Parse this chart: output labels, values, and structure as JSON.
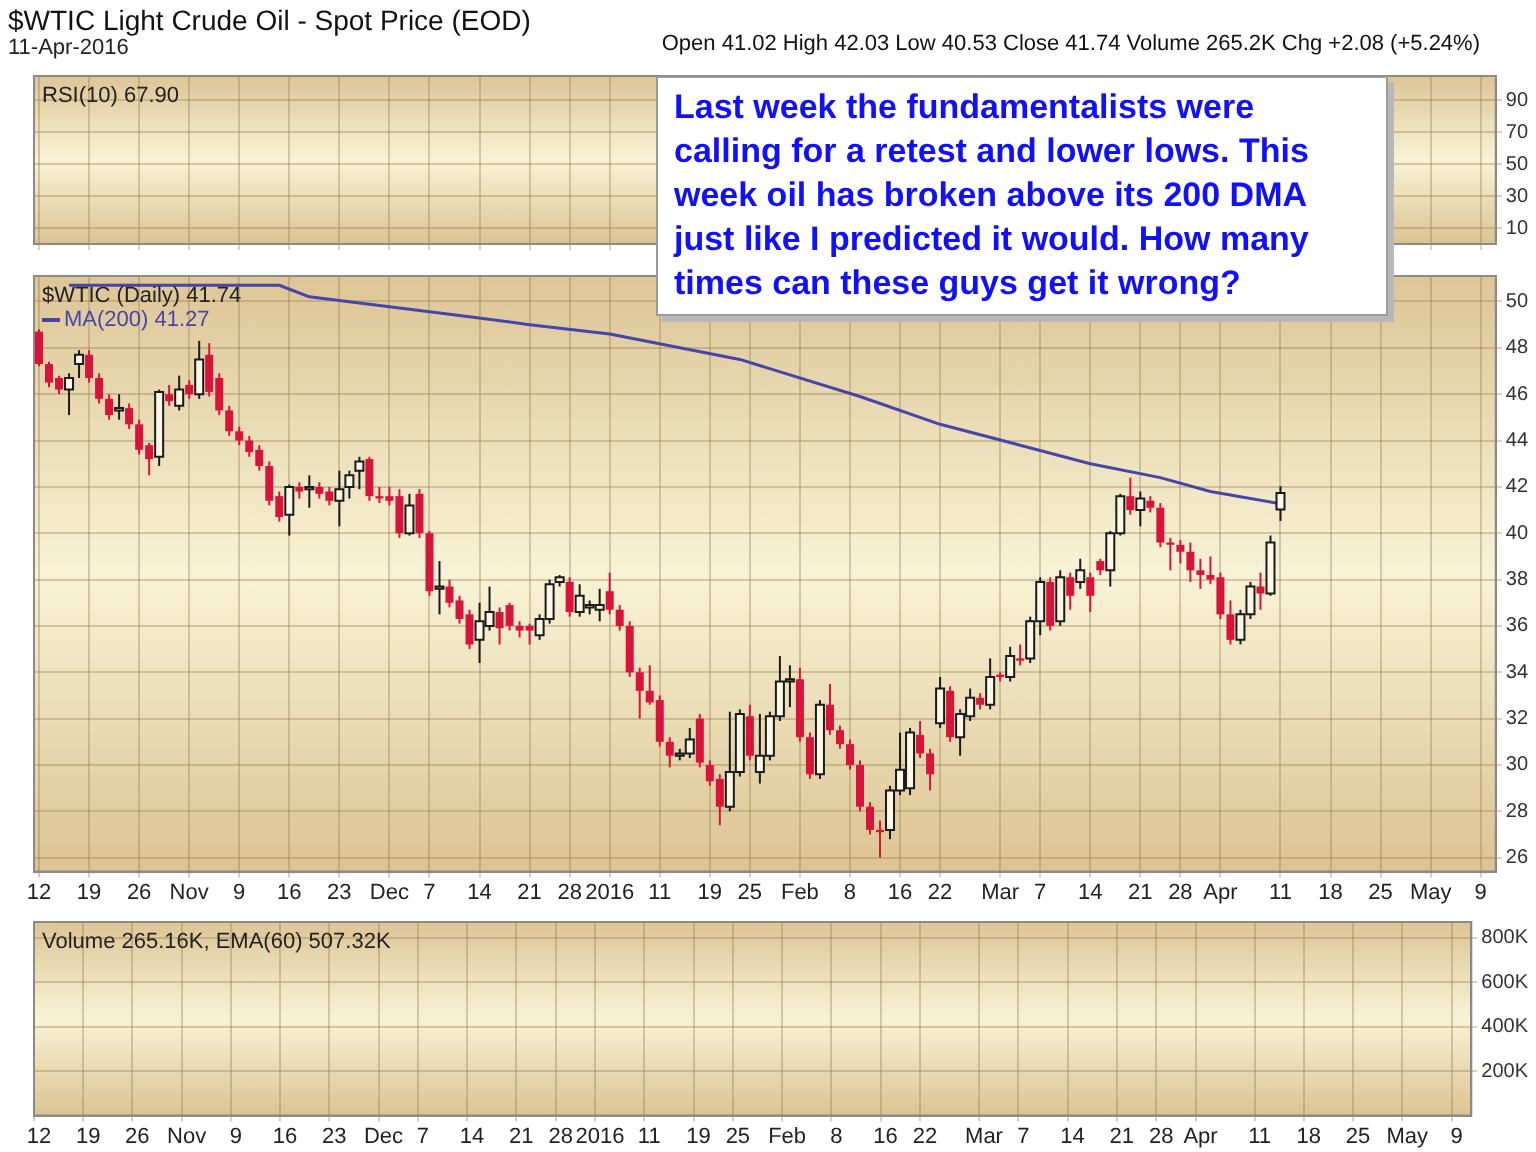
{
  "chart_data": [
    {
      "type": "line",
      "title": "$WTIC Light Crude Oil - Spot Price (EOD)",
      "subtitle": "11-Apr-2016",
      "annotations": [
        "Open 41.02 High 42.03 Low 40.53 Close 41.74 Volume 265.2K Chg +2.08 (+5.24%)",
        "Last week the fundamentalists were calling for a retest and lower lows. This week oil has broken above its 200 DMA just like I predicted it would. How many times can these guys get it wrong?"
      ],
      "legend_title": "RSI(10) 67.90",
      "categories": [
        null,
        null,
        null,
        null,
        null,
        null,
        null,
        null,
        null,
        null,
        null,
        null,
        null,
        null,
        null,
        null,
        null,
        null,
        null,
        null,
        null,
        null,
        null,
        null,
        null,
        null,
        null,
        null,
        null,
        null,
        null,
        null,
        null,
        null,
        null,
        null,
        null,
        null,
        null,
        null,
        null,
        null,
        null,
        null,
        null,
        null,
        null,
        null,
        null,
        null,
        null,
        null,
        null,
        null,
        null,
        null,
        null,
        null,
        null,
        null,
        null,
        null,
        null,
        null,
        null,
        null,
        null,
        null,
        null,
        null,
        null,
        null,
        null,
        null,
        null,
        null,
        null,
        null,
        null,
        null,
        null,
        null,
        null,
        null,
        null,
        null,
        null,
        null,
        null,
        null,
        null,
        null,
        null,
        null,
        null,
        null,
        null,
        null,
        null,
        null,
        null,
        null,
        null,
        null,
        null,
        null,
        null,
        null,
        null,
        null,
        null,
        null,
        null,
        null,
        null,
        null,
        null,
        null,
        null,
        null,
        null,
        null,
        null,
        null,
        null,
        null,
        null,
        null,
        null,
        null,
        null,
        null,
        null,
        null,
        null,
        null,
        null,
        null,
        null,
        null,
        null,
        null,
        null,
        null,
        null,
        null
      ],
      "ylim": [
        0,
        105
      ],
      "yticks": [
        10,
        30,
        50,
        70,
        90
      ],
      "grid": true,
      "tick_labels": "y"
    },
    {
      "type": "candlestick",
      "legend_title": "$WTIC (Daily) 41.74",
      "legend": "top left",
      "grid": true,
      "categories": [
        "12",
        null,
        null,
        null,
        null,
        "19",
        null,
        null,
        null,
        null,
        "26",
        null,
        null,
        null,
        null,
        "Nov",
        null,
        null,
        null,
        null,
        "9",
        null,
        null,
        null,
        null,
        "16",
        null,
        null,
        null,
        null,
        "23",
        null,
        null,
        null,
        null,
        "Dec",
        null,
        null,
        null,
        "7",
        null,
        null,
        null,
        null,
        "14",
        null,
        null,
        null,
        null,
        "21",
        null,
        null,
        null,
        "28",
        null,
        null,
        null,
        "2016",
        null,
        null,
        null,
        null,
        "11",
        null,
        null,
        null,
        null,
        "19",
        null,
        null,
        null,
        "25",
        null,
        null,
        null,
        null,
        "Feb",
        null,
        null,
        null,
        null,
        "8",
        null,
        null,
        null,
        null,
        "16",
        null,
        null,
        null,
        "22",
        null,
        null,
        null,
        null,
        null,
        "Mar",
        null,
        null,
        null,
        "7",
        null,
        null,
        null,
        null,
        "14",
        null,
        null,
        null,
        null,
        "21",
        null,
        null,
        null,
        "28",
        null,
        null,
        null,
        "Apr",
        null,
        null,
        null,
        null,
        null,
        "11",
        null,
        null,
        null,
        null,
        "18",
        null,
        null,
        null,
        null,
        "25",
        null,
        null,
        null,
        null,
        "May",
        null,
        null,
        null,
        null,
        "9",
        null
      ],
      "ohlc": [
        [
          48.7,
          48.8,
          47.2,
          47.3
        ],
        [
          47.3,
          47.4,
          46.3,
          46.5
        ],
        [
          46.7,
          46.8,
          46.0,
          46.2
        ],
        [
          46.2,
          46.9,
          45.1,
          46.7
        ],
        [
          47.3,
          47.9,
          46.7,
          47.7
        ],
        [
          47.7,
          47.9,
          46.5,
          46.7
        ],
        [
          46.7,
          46.9,
          45.6,
          45.8
        ],
        [
          45.8,
          46.0,
          44.9,
          45.1
        ],
        [
          45.3,
          46.0,
          44.9,
          45.4
        ],
        [
          45.4,
          45.6,
          44.5,
          44.7
        ],
        [
          44.7,
          44.9,
          43.4,
          43.6
        ],
        [
          43.8,
          43.9,
          42.5,
          43.2
        ],
        [
          43.3,
          46.2,
          42.9,
          46.1
        ],
        [
          46.0,
          46.4,
          45.5,
          45.7
        ],
        [
          45.5,
          46.8,
          45.3,
          46.2
        ],
        [
          46.4,
          46.6,
          45.8,
          46.0
        ],
        [
          46.0,
          48.3,
          45.8,
          47.5
        ],
        [
          47.7,
          48.2,
          45.9,
          46.1
        ],
        [
          46.7,
          46.9,
          45.1,
          45.3
        ],
        [
          45.3,
          45.5,
          44.2,
          44.4
        ],
        [
          44.4,
          44.6,
          43.8,
          44.0
        ],
        [
          44.0,
          44.2,
          43.3,
          43.5
        ],
        [
          43.6,
          43.8,
          42.7,
          42.9
        ],
        [
          42.9,
          43.1,
          41.2,
          41.4
        ],
        [
          41.6,
          41.8,
          40.5,
          40.7
        ],
        [
          40.8,
          42.1,
          39.9,
          42.0
        ],
        [
          42.0,
          42.2,
          41.5,
          41.8
        ],
        [
          41.9,
          42.5,
          41.1,
          42.0
        ],
        [
          42.0,
          42.2,
          41.5,
          41.7
        ],
        [
          41.8,
          42.0,
          41.2,
          41.4
        ],
        [
          41.4,
          42.7,
          40.3,
          41.9
        ],
        [
          42.0,
          42.7,
          41.5,
          42.5
        ],
        [
          42.7,
          43.3,
          41.9,
          43.1
        ],
        [
          43.2,
          43.3,
          41.4,
          41.6
        ],
        [
          41.6,
          42.0,
          41.3,
          41.5
        ],
        [
          41.6,
          42.0,
          41.2,
          41.4
        ],
        [
          41.6,
          41.9,
          39.8,
          40.0
        ],
        [
          40.0,
          41.7,
          39.9,
          41.2
        ],
        [
          41.7,
          41.9,
          39.8,
          40.0
        ],
        [
          40.0,
          40.1,
          37.3,
          37.5
        ],
        [
          37.6,
          38.8,
          36.5,
          37.7
        ],
        [
          37.7,
          38.0,
          36.8,
          37.0
        ],
        [
          37.1,
          37.3,
          36.1,
          36.3
        ],
        [
          36.5,
          36.7,
          35.0,
          35.2
        ],
        [
          35.4,
          37.0,
          34.4,
          36.2
        ],
        [
          36.0,
          37.7,
          35.8,
          36.6
        ],
        [
          36.6,
          36.8,
          35.2,
          35.9
        ],
        [
          36.9,
          37.0,
          35.8,
          36.0
        ],
        [
          36.0,
          36.2,
          35.5,
          35.8
        ],
        [
          36.0,
          36.1,
          35.2,
          35.8
        ],
        [
          35.6,
          36.5,
          35.4,
          36.3
        ],
        [
          36.3,
          38.0,
          36.1,
          37.8
        ],
        [
          37.9,
          38.2,
          37.7,
          38.1
        ],
        [
          37.9,
          38.1,
          36.4,
          36.6
        ],
        [
          36.6,
          37.8,
          36.4,
          37.3
        ],
        [
          36.8,
          37.1,
          36.5,
          36.9
        ],
        [
          36.7,
          37.6,
          36.2,
          36.9
        ],
        [
          37.5,
          38.3,
          36.5,
          36.7
        ],
        [
          36.7,
          36.9,
          35.8,
          36.0
        ],
        [
          36.0,
          36.2,
          33.8,
          34.0
        ],
        [
          34.0,
          34.2,
          32.0,
          33.2
        ],
        [
          33.2,
          34.3,
          32.6,
          32.7
        ],
        [
          32.8,
          33.0,
          30.8,
          31.0
        ],
        [
          31.0,
          31.2,
          29.9,
          30.4
        ],
        [
          30.4,
          30.7,
          30.2,
          30.5
        ],
        [
          30.5,
          31.6,
          30.3,
          31.1
        ],
        [
          32.0,
          32.2,
          29.9,
          30.1
        ],
        [
          30.0,
          30.2,
          29.1,
          29.3
        ],
        [
          29.4,
          29.6,
          27.4,
          28.2
        ],
        [
          28.2,
          32.3,
          28.0,
          29.7
        ],
        [
          29.7,
          32.4,
          29.5,
          32.2
        ],
        [
          32.1,
          32.6,
          30.2,
          30.4
        ],
        [
          29.7,
          32.2,
          29.2,
          30.4
        ],
        [
          30.4,
          32.3,
          30.2,
          32.1
        ],
        [
          32.1,
          34.7,
          31.9,
          33.6
        ],
        [
          33.6,
          34.3,
          32.5,
          33.7
        ],
        [
          33.7,
          34.2,
          31.0,
          31.2
        ],
        [
          31.2,
          31.4,
          29.4,
          29.6
        ],
        [
          29.6,
          32.8,
          29.4,
          32.6
        ],
        [
          32.6,
          33.5,
          31.3,
          31.5
        ],
        [
          31.5,
          31.7,
          30.7,
          30.9
        ],
        [
          30.9,
          31.1,
          29.8,
          30.0
        ],
        [
          30.0,
          30.2,
          28.0,
          28.2
        ],
        [
          28.2,
          28.4,
          27.0,
          27.2
        ],
        [
          27.2,
          27.6,
          26.0,
          27.1
        ],
        [
          27.2,
          29.1,
          26.8,
          28.9
        ],
        [
          28.9,
          31.4,
          28.7,
          29.8
        ],
        [
          29.0,
          31.6,
          28.7,
          31.4
        ],
        [
          31.3,
          31.9,
          30.3,
          30.5
        ],
        [
          30.5,
          30.7,
          28.9,
          29.6
        ],
        [
          31.8,
          33.8,
          31.6,
          33.3
        ],
        [
          33.2,
          33.4,
          31.0,
          31.2
        ],
        [
          31.2,
          32.4,
          30.4,
          32.2
        ],
        [
          32.1,
          33.3,
          31.9,
          32.9
        ],
        [
          32.9,
          33.1,
          32.4,
          32.6
        ],
        [
          32.6,
          34.6,
          32.4,
          33.8
        ],
        [
          33.9,
          34.0,
          33.6,
          33.8
        ],
        [
          33.8,
          35.1,
          33.6,
          34.7
        ],
        [
          34.6,
          35.2,
          34.3,
          34.5
        ],
        [
          34.6,
          36.4,
          34.4,
          36.2
        ],
        [
          36.2,
          38.1,
          35.6,
          37.9
        ],
        [
          37.9,
          38.1,
          35.8,
          36.0
        ],
        [
          36.2,
          38.4,
          36.0,
          38.1
        ],
        [
          38.1,
          38.3,
          36.7,
          37.3
        ],
        [
          37.9,
          38.9,
          37.6,
          38.4
        ],
        [
          38.1,
          38.3,
          36.6,
          37.3
        ],
        [
          38.8,
          38.9,
          38.2,
          38.4
        ],
        [
          38.4,
          40.1,
          37.7,
          40.0
        ],
        [
          40.0,
          41.7,
          39.9,
          41.6
        ],
        [
          41.6,
          42.4,
          40.8,
          41.0
        ],
        [
          41.0,
          41.8,
          40.3,
          41.5
        ],
        [
          41.4,
          41.6,
          40.9,
          41.1
        ],
        [
          41.1,
          41.3,
          39.4,
          39.6
        ],
        [
          39.6,
          39.8,
          38.4,
          39.5
        ],
        [
          39.5,
          39.7,
          38.7,
          39.2
        ],
        [
          39.2,
          39.6,
          37.9,
          38.4
        ],
        [
          38.4,
          38.9,
          37.6,
          38.2
        ],
        [
          38.2,
          39.0,
          37.8,
          38.0
        ],
        [
          38.1,
          38.3,
          36.3,
          36.5
        ],
        [
          36.5,
          37.1,
          35.2,
          35.4
        ],
        [
          35.4,
          36.7,
          35.2,
          36.5
        ],
        [
          36.5,
          37.9,
          36.3,
          37.7
        ],
        [
          37.7,
          38.3,
          36.7,
          37.4
        ],
        [
          37.4,
          39.9,
          37.3,
          39.6
        ],
        [
          41.02,
          42.03,
          40.53,
          41.74
        ],
        null,
        null,
        null,
        null,
        null,
        null,
        null,
        null,
        null,
        null,
        null,
        null,
        null,
        null,
        null,
        null,
        null,
        null,
        null,
        null,
        null
      ],
      "series": [
        {
          "name": "MA(200) 41.27",
          "type": "line",
          "color": "#4646a8",
          "values": [
            null,
            null,
            null,
            50.7,
            null,
            null,
            null,
            null,
            null,
            null,
            null,
            null,
            null,
            null,
            null,
            null,
            null,
            null,
            null,
            null,
            null,
            null,
            null,
            null,
            50.7,
            null,
            null,
            50.2,
            null,
            null,
            null,
            null,
            null,
            null,
            null,
            null,
            null,
            null,
            null,
            null,
            null,
            null,
            49.4,
            null,
            null,
            null,
            null,
            null,
            null,
            49.0,
            null,
            null,
            null,
            null,
            null,
            null,
            null,
            48.6,
            null,
            null,
            null,
            null,
            null,
            null,
            null,
            null,
            null,
            null,
            null,
            null,
            47.5,
            null,
            null,
            null,
            null,
            null,
            null,
            null,
            null,
            null,
            null,
            null,
            45.9,
            null,
            null,
            null,
            null,
            null,
            null,
            null,
            44.7,
            null,
            null,
            null,
            null,
            null,
            null,
            null,
            43.8,
            null,
            null,
            null,
            null,
            null,
            null,
            43.0,
            null,
            null,
            null,
            null,
            null,
            null,
            42.4,
            null,
            null,
            null,
            null,
            41.8,
            null,
            null,
            null,
            null,
            null,
            null,
            41.27,
            null,
            null,
            null,
            null,
            null,
            null,
            null,
            null,
            null,
            null,
            null,
            null,
            null,
            null,
            null,
            null,
            null,
            null,
            null,
            null,
            null
          ]
        }
      ],
      "ylim": [
        25.4,
        51.1
      ],
      "yticks": [
        26,
        28,
        30,
        32,
        34,
        36,
        38,
        40,
        42,
        44,
        46,
        48,
        50
      ]
    },
    {
      "type": "bar",
      "grid": true,
      "categories": [
        "12",
        null,
        null,
        null,
        null,
        "19",
        null,
        null,
        null,
        null,
        "26",
        null,
        null,
        null,
        null,
        "Nov",
        null,
        null,
        null,
        null,
        "9",
        null,
        null,
        null,
        null,
        "16",
        null,
        null,
        null,
        null,
        "23",
        null,
        null,
        null,
        null,
        "Dec",
        null,
        null,
        null,
        "7",
        null,
        null,
        null,
        null,
        "14",
        null,
        null,
        null,
        null,
        "21",
        null,
        null,
        null,
        "28",
        null,
        null,
        null,
        "2016",
        null,
        null,
        null,
        null,
        "11",
        null,
        null,
        null,
        null,
        "19",
        null,
        null,
        null,
        "25",
        null,
        null,
        null,
        null,
        "Feb",
        null,
        null,
        null,
        null,
        "8",
        null,
        null,
        null,
        null,
        "16",
        null,
        null,
        null,
        "22",
        null,
        null,
        null,
        null,
        null,
        "Mar",
        null,
        null,
        null,
        "7",
        null,
        null,
        null,
        null,
        "14",
        null,
        null,
        null,
        null,
        "21",
        null,
        null,
        null,
        "28",
        null,
        null,
        null,
        "Apr",
        null,
        null,
        null,
        null,
        null,
        "11",
        null,
        null,
        null,
        null,
        "18",
        null,
        null,
        null,
        null,
        "25",
        null,
        null,
        null,
        null,
        "May",
        null,
        null,
        null,
        null,
        "9",
        null
      ],
      "legend_title": "Volume 265.16K, EMA(60) 507.32K",
      "ylim": [
        0,
        870000
      ],
      "yticks": [
        {
          "value": 200000,
          "label": "200K"
        },
        {
          "value": 400000,
          "label": "400K"
        },
        {
          "value": 600000,
          "label": "600K"
        },
        {
          "value": 800000,
          "label": "800K"
        }
      ]
    }
  ]
}
